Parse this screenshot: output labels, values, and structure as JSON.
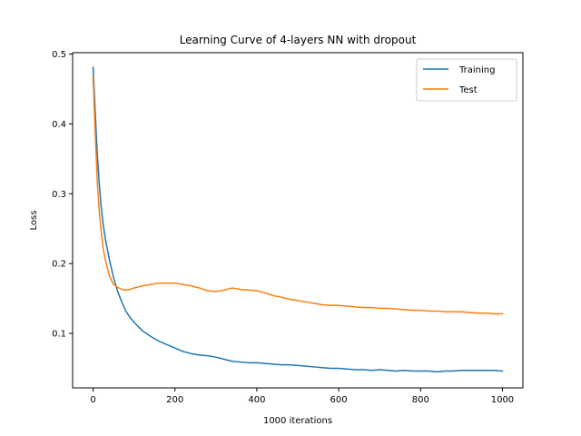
{
  "chart_data": {
    "type": "line",
    "title": "Learning Curve of 4-layers NN with dropout",
    "xlabel": "1000 iterations",
    "ylabel": "Loss",
    "xlim": [
      -50,
      1050
    ],
    "ylim": [
      0.022,
      0.502
    ],
    "xticks": [
      0,
      200,
      400,
      600,
      800,
      1000
    ],
    "yticks": [
      0.1,
      0.2,
      0.3,
      0.4,
      0.5
    ],
    "grid": false,
    "legend_position": "top-right",
    "series": [
      {
        "name": "Training",
        "color": "#1f77b4",
        "x": [
          0,
          5,
          10,
          15,
          20,
          25,
          30,
          40,
          50,
          60,
          70,
          80,
          90,
          100,
          120,
          140,
          160,
          180,
          200,
          220,
          240,
          260,
          280,
          300,
          320,
          340,
          360,
          380,
          400,
          420,
          440,
          460,
          480,
          500,
          520,
          540,
          560,
          580,
          600,
          620,
          640,
          660,
          680,
          700,
          720,
          740,
          760,
          780,
          800,
          820,
          840,
          860,
          880,
          900,
          920,
          940,
          960,
          980,
          1000
        ],
        "values": [
          0.481,
          0.42,
          0.36,
          0.315,
          0.28,
          0.255,
          0.235,
          0.205,
          0.18,
          0.16,
          0.145,
          0.132,
          0.123,
          0.116,
          0.104,
          0.096,
          0.089,
          0.084,
          0.079,
          0.074,
          0.071,
          0.069,
          0.068,
          0.066,
          0.063,
          0.06,
          0.059,
          0.058,
          0.058,
          0.057,
          0.056,
          0.055,
          0.055,
          0.054,
          0.053,
          0.052,
          0.051,
          0.05,
          0.05,
          0.049,
          0.048,
          0.048,
          0.047,
          0.048,
          0.047,
          0.046,
          0.047,
          0.046,
          0.046,
          0.046,
          0.045,
          0.046,
          0.046,
          0.047,
          0.047,
          0.047,
          0.047,
          0.047,
          0.046
        ]
      },
      {
        "name": "Test",
        "color": "#ff7f0e",
        "x": [
          0,
          5,
          10,
          15,
          20,
          25,
          30,
          40,
          50,
          60,
          70,
          80,
          90,
          100,
          120,
          140,
          160,
          180,
          200,
          220,
          240,
          260,
          280,
          300,
          320,
          340,
          360,
          380,
          400,
          420,
          440,
          460,
          480,
          500,
          520,
          540,
          560,
          580,
          600,
          620,
          640,
          660,
          680,
          700,
          720,
          740,
          760,
          780,
          800,
          820,
          840,
          860,
          880,
          900,
          920,
          940,
          960,
          980,
          1000
        ],
        "values": [
          0.468,
          0.39,
          0.32,
          0.275,
          0.245,
          0.22,
          0.205,
          0.182,
          0.17,
          0.166,
          0.163,
          0.162,
          0.163,
          0.165,
          0.168,
          0.17,
          0.172,
          0.172,
          0.172,
          0.17,
          0.168,
          0.165,
          0.161,
          0.16,
          0.162,
          0.165,
          0.163,
          0.162,
          0.161,
          0.158,
          0.154,
          0.152,
          0.149,
          0.147,
          0.145,
          0.143,
          0.141,
          0.14,
          0.14,
          0.139,
          0.138,
          0.137,
          0.137,
          0.136,
          0.136,
          0.135,
          0.134,
          0.133,
          0.133,
          0.132,
          0.132,
          0.131,
          0.131,
          0.131,
          0.13,
          0.129,
          0.129,
          0.128,
          0.128
        ]
      }
    ]
  }
}
